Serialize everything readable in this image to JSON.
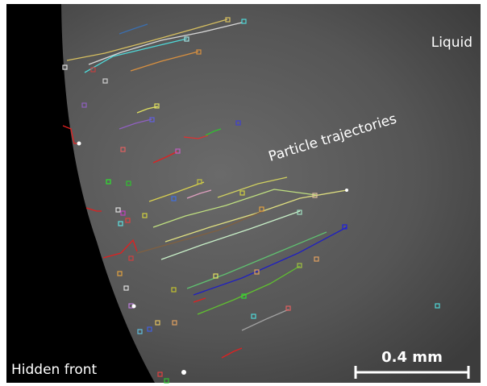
{
  "labels": {
    "liquid": "Liquid",
    "trajectories": "Particle trajectories",
    "hidden_front": "Hidden front",
    "scale_bar": "0.4 mm"
  }
}
